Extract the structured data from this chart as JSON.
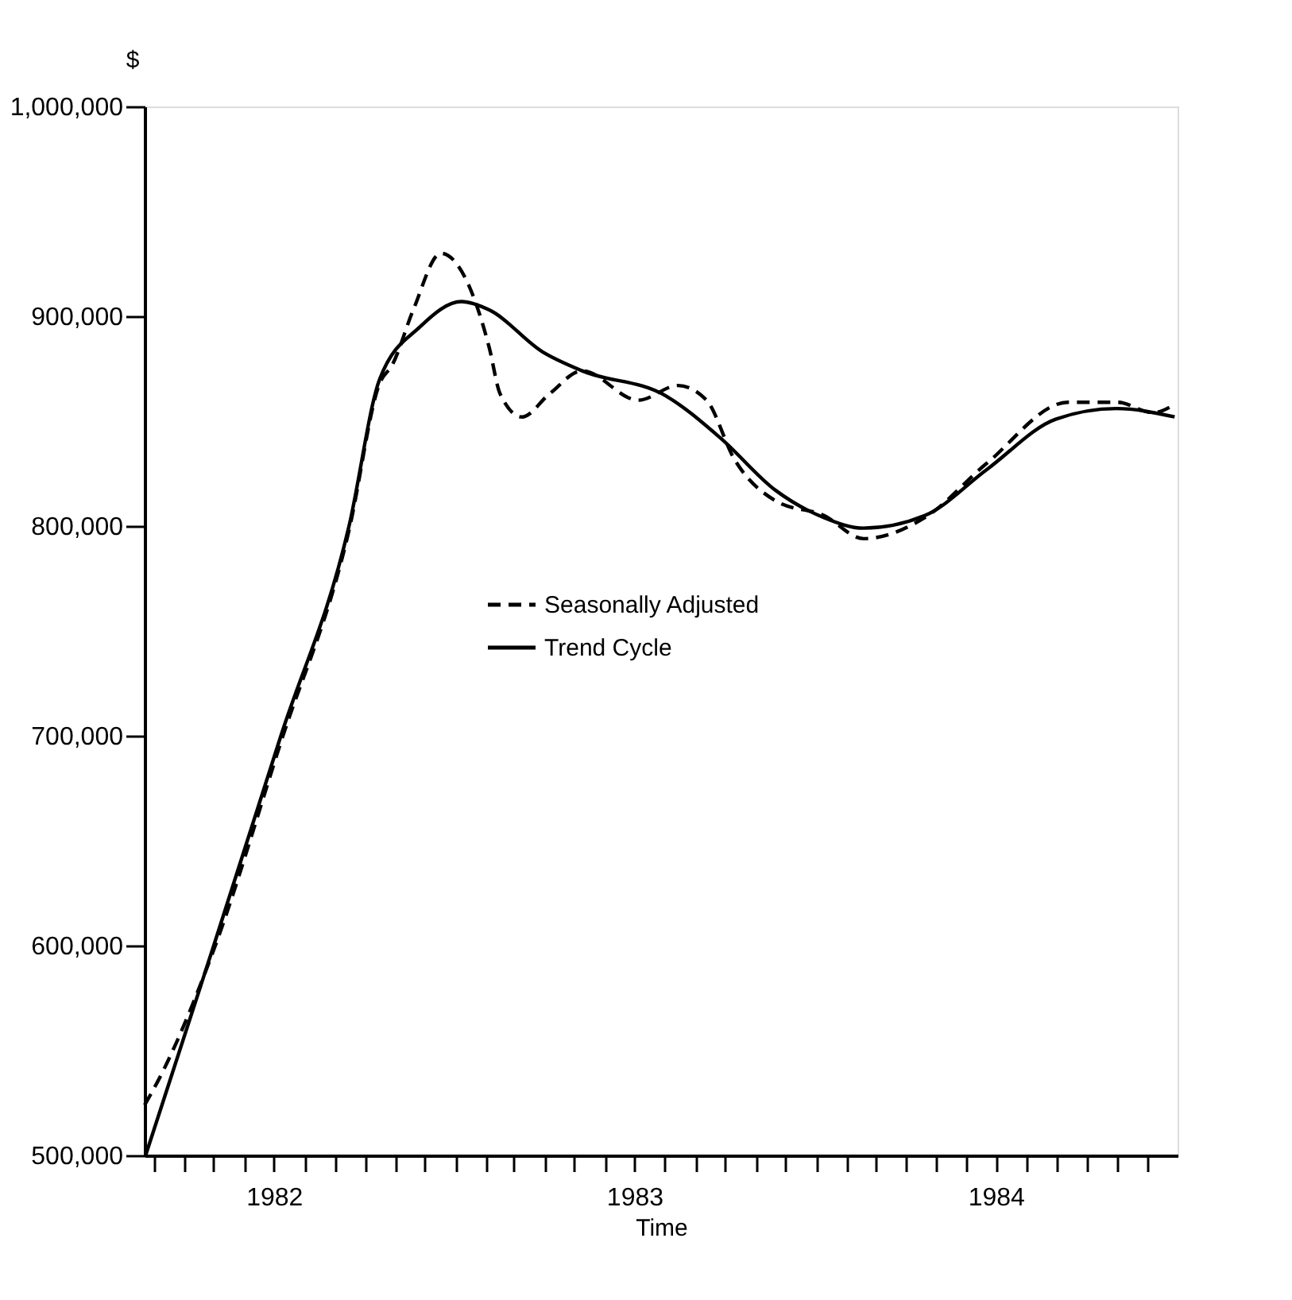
{
  "chart_data": {
    "type": "line",
    "xlabel": "Time",
    "ylabel": "$",
    "xlim": [
      "1982-02-20",
      "1985-01-01"
    ],
    "xticks": [
      {
        "value": "1982-03-01",
        "label": null
      },
      {
        "value": "1982-04-01",
        "label": null
      },
      {
        "value": "1982-05-01",
        "label": null
      },
      {
        "value": "1982-06-01",
        "label": null
      },
      {
        "value": "1982-07-01",
        "label": "1982"
      },
      {
        "value": "1982-08-01",
        "label": null
      },
      {
        "value": "1982-09-01",
        "label": null
      },
      {
        "value": "1982-10-01",
        "label": null
      },
      {
        "value": "1982-11-01",
        "label": null
      },
      {
        "value": "1982-12-01",
        "label": null
      },
      {
        "value": "1983-01-01",
        "label": null
      },
      {
        "value": "1983-02-01",
        "label": null
      },
      {
        "value": "1983-03-01",
        "label": null
      },
      {
        "value": "1983-04-01",
        "label": null
      },
      {
        "value": "1983-05-01",
        "label": null
      },
      {
        "value": "1983-06-01",
        "label": null
      },
      {
        "value": "1983-07-01",
        "label": "1983"
      },
      {
        "value": "1983-08-01",
        "label": null
      },
      {
        "value": "1983-09-01",
        "label": null
      },
      {
        "value": "1983-10-01",
        "label": null
      },
      {
        "value": "1983-11-01",
        "label": null
      },
      {
        "value": "1983-12-01",
        "label": null
      },
      {
        "value": "1984-01-01",
        "label": null
      },
      {
        "value": "1984-02-01",
        "label": null
      },
      {
        "value": "1984-03-01",
        "label": null
      },
      {
        "value": "1984-04-01",
        "label": null
      },
      {
        "value": "1984-05-01",
        "label": null
      },
      {
        "value": "1984-06-01",
        "label": null
      },
      {
        "value": "1984-07-01",
        "label": "1984"
      },
      {
        "value": "1984-08-01",
        "label": null
      },
      {
        "value": "1984-09-01",
        "label": null
      },
      {
        "value": "1984-10-01",
        "label": null
      },
      {
        "value": "1984-11-01",
        "label": null
      },
      {
        "value": "1984-12-01",
        "label": null
      }
    ],
    "ylim": [
      500000,
      1000000
    ],
    "yticks": [
      {
        "value": 500000,
        "label": "500,000"
      },
      {
        "value": 600000,
        "label": "600,000"
      },
      {
        "value": 700000,
        "label": "700,000"
      },
      {
        "value": 800000,
        "label": "800,000"
      },
      {
        "value": 900000,
        "label": "900,000"
      },
      {
        "value": 1000000,
        "label": "1,000,000"
      }
    ],
    "grid": false,
    "legend": "center",
    "series": [
      {
        "name": "Seasonally Adjusted",
        "color": "#000000",
        "line_style": "dashed",
        "x": [
          "1982-02-20",
          "1982-03-05",
          "1982-05-01",
          "1982-07-08",
          "1982-09-15",
          "1982-10-16",
          "1982-10-29",
          "1982-11-19",
          "1982-12-17",
          "1983-01-14",
          "1983-02-04",
          "1983-02-15",
          "1983-03-09",
          "1983-04-06",
          "1983-05-09",
          "1983-07-05",
          "1983-08-14",
          "1983-09-12",
          "1983-10-10",
          "1983-11-21",
          "1984-01-09",
          "1984-02-18",
          "1984-04-20",
          "1984-06-22",
          "1984-09-12",
          "1984-11-01",
          "1984-12-07",
          "1984-12-29"
        ],
        "values": [
          524000,
          535000,
          598000,
          697000,
          798000,
          868000,
          877000,
          903000,
          930000,
          915000,
          885000,
          863000,
          852000,
          863000,
          874000,
          860000,
          867000,
          860000,
          832000,
          812000,
          805000,
          794000,
          804000,
          830000,
          859000,
          859000,
          854000,
          858000
        ]
      },
      {
        "name": "Trend Cycle",
        "color": "#000000",
        "line_style": "solid",
        "x": [
          "1982-02-21",
          "1982-05-01",
          "1982-07-08",
          "1982-09-15",
          "1982-10-16",
          "1982-11-26",
          "1983-01-07",
          "1983-02-04",
          "1983-03-30",
          "1983-05-09",
          "1983-08-02",
          "1983-09-26",
          "1983-11-21",
          "1984-01-09",
          "1984-02-18",
          "1984-04-20",
          "1984-06-22",
          "1984-08-31",
          "1984-10-31",
          "1984-12-29"
        ],
        "values": [
          500000,
          600000,
          700000,
          800000,
          870000,
          895000,
          907000,
          903000,
          883000,
          874000,
          862000,
          842000,
          817000,
          804000,
          799000,
          805000,
          827000,
          851000,
          856000,
          852000
        ]
      }
    ]
  }
}
